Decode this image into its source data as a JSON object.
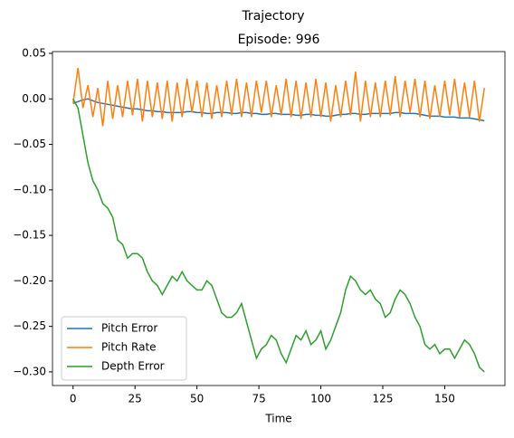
{
  "chart_data": {
    "type": "line",
    "suptitle": "Trajectory",
    "title": "Episode: 996",
    "x_label": "Time",
    "x": [
      0,
      2,
      4,
      6,
      8,
      10,
      12,
      14,
      16,
      18,
      20,
      22,
      24,
      26,
      28,
      30,
      32,
      34,
      36,
      38,
      40,
      42,
      44,
      46,
      48,
      50,
      52,
      54,
      56,
      58,
      60,
      62,
      64,
      66,
      68,
      70,
      72,
      74,
      76,
      78,
      80,
      82,
      84,
      86,
      88,
      90,
      92,
      94,
      96,
      98,
      100,
      102,
      104,
      106,
      108,
      110,
      112,
      114,
      116,
      118,
      120,
      122,
      124,
      126,
      128,
      130,
      132,
      134,
      136,
      138,
      140,
      142,
      144,
      146,
      148,
      150,
      152,
      154,
      156,
      158,
      160,
      162,
      164,
      166
    ],
    "series": [
      {
        "name": "Pitch Error",
        "color": "#1f77b4",
        "values": [
          -0.005,
          -0.003,
          -0.001,
          0,
          -0.002,
          -0.004,
          -0.005,
          -0.006,
          -0.007,
          -0.008,
          -0.009,
          -0.01,
          -0.011,
          -0.011,
          -0.012,
          -0.013,
          -0.013,
          -0.014,
          -0.014,
          -0.015,
          -0.015,
          -0.015,
          -0.015,
          -0.014,
          -0.014,
          -0.015,
          -0.015,
          -0.016,
          -0.016,
          -0.015,
          -0.015,
          -0.015,
          -0.016,
          -0.016,
          -0.015,
          -0.015,
          -0.016,
          -0.016,
          -0.017,
          -0.017,
          -0.016,
          -0.016,
          -0.017,
          -0.017,
          -0.017,
          -0.018,
          -0.018,
          -0.017,
          -0.017,
          -0.018,
          -0.018,
          -0.019,
          -0.019,
          -0.018,
          -0.017,
          -0.017,
          -0.016,
          -0.016,
          -0.017,
          -0.017,
          -0.016,
          -0.016,
          -0.016,
          -0.016,
          -0.016,
          -0.015,
          -0.015,
          -0.016,
          -0.016,
          -0.016,
          -0.017,
          -0.018,
          -0.019,
          -0.019,
          -0.019,
          -0.02,
          -0.02,
          -0.02,
          -0.021,
          -0.021,
          -0.021,
          -0.022,
          -0.023,
          -0.024
        ]
      },
      {
        "name": "Pitch Rate",
        "color": "#ff7f0e",
        "values": [
          -0.005,
          0.034,
          -0.01,
          0.015,
          -0.02,
          0.012,
          -0.03,
          0.02,
          -0.022,
          0.015,
          -0.02,
          0.02,
          -0.018,
          0.022,
          -0.025,
          0.02,
          -0.02,
          0.018,
          -0.022,
          0.02,
          -0.025,
          0.018,
          -0.02,
          0.022,
          -0.015,
          0.02,
          -0.02,
          0.018,
          -0.022,
          0.015,
          -0.02,
          0.02,
          -0.018,
          0.022,
          -0.02,
          0.018,
          -0.02,
          0.02,
          -0.015,
          0.02,
          -0.02,
          0.015,
          -0.018,
          0.022,
          -0.02,
          0.02,
          -0.022,
          0.018,
          -0.02,
          0.022,
          -0.02,
          0.018,
          -0.025,
          0.015,
          -0.02,
          0.02,
          -0.018,
          0.03,
          -0.025,
          0.02,
          -0.02,
          0.018,
          -0.02,
          0.02,
          -0.018,
          0.025,
          -0.02,
          0.02,
          -0.015,
          0.022,
          -0.02,
          0.02,
          -0.022,
          0.015,
          -0.02,
          0.02,
          -0.018,
          0.022,
          -0.02,
          0.018,
          -0.02,
          0.02,
          -0.025,
          0.012
        ]
      },
      {
        "name": "Depth Error",
        "color": "#2ca02c",
        "values": [
          0,
          -0.01,
          -0.04,
          -0.07,
          -0.09,
          -0.1,
          -0.115,
          -0.12,
          -0.13,
          -0.155,
          -0.16,
          -0.175,
          -0.17,
          -0.17,
          -0.175,
          -0.19,
          -0.2,
          -0.205,
          -0.215,
          -0.205,
          -0.195,
          -0.2,
          -0.19,
          -0.2,
          -0.205,
          -0.21,
          -0.21,
          -0.2,
          -0.205,
          -0.22,
          -0.235,
          -0.24,
          -0.24,
          -0.235,
          -0.225,
          -0.245,
          -0.265,
          -0.285,
          -0.275,
          -0.27,
          -0.26,
          -0.265,
          -0.28,
          -0.29,
          -0.275,
          -0.26,
          -0.265,
          -0.255,
          -0.27,
          -0.265,
          -0.255,
          -0.275,
          -0.265,
          -0.25,
          -0.235,
          -0.21,
          -0.195,
          -0.2,
          -0.21,
          -0.215,
          -0.21,
          -0.22,
          -0.225,
          -0.24,
          -0.235,
          -0.22,
          -0.21,
          -0.215,
          -0.225,
          -0.24,
          -0.25,
          -0.27,
          -0.275,
          -0.27,
          -0.28,
          -0.275,
          -0.275,
          -0.285,
          -0.275,
          -0.265,
          -0.27,
          -0.28,
          -0.295,
          -0.3
        ]
      }
    ],
    "xlim": [
      -8.3,
      174.3
    ],
    "ylim": [
      -0.315,
      0.052
    ],
    "xticks": [
      0,
      25,
      50,
      75,
      100,
      125,
      150
    ],
    "yticks": [
      {
        "value": 0.05,
        "label": "0.05"
      },
      {
        "value": 0,
        "label": "0.00"
      },
      {
        "value": -0.05,
        "label": "−0.05"
      },
      {
        "value": -0.1,
        "label": "−0.10"
      },
      {
        "value": -0.15,
        "label": "−0.15"
      },
      {
        "value": -0.2,
        "label": "−0.20"
      },
      {
        "value": -0.25,
        "label": "−0.25"
      },
      {
        "value": -0.3,
        "label": "−0.30"
      }
    ],
    "legend": "lower left"
  }
}
